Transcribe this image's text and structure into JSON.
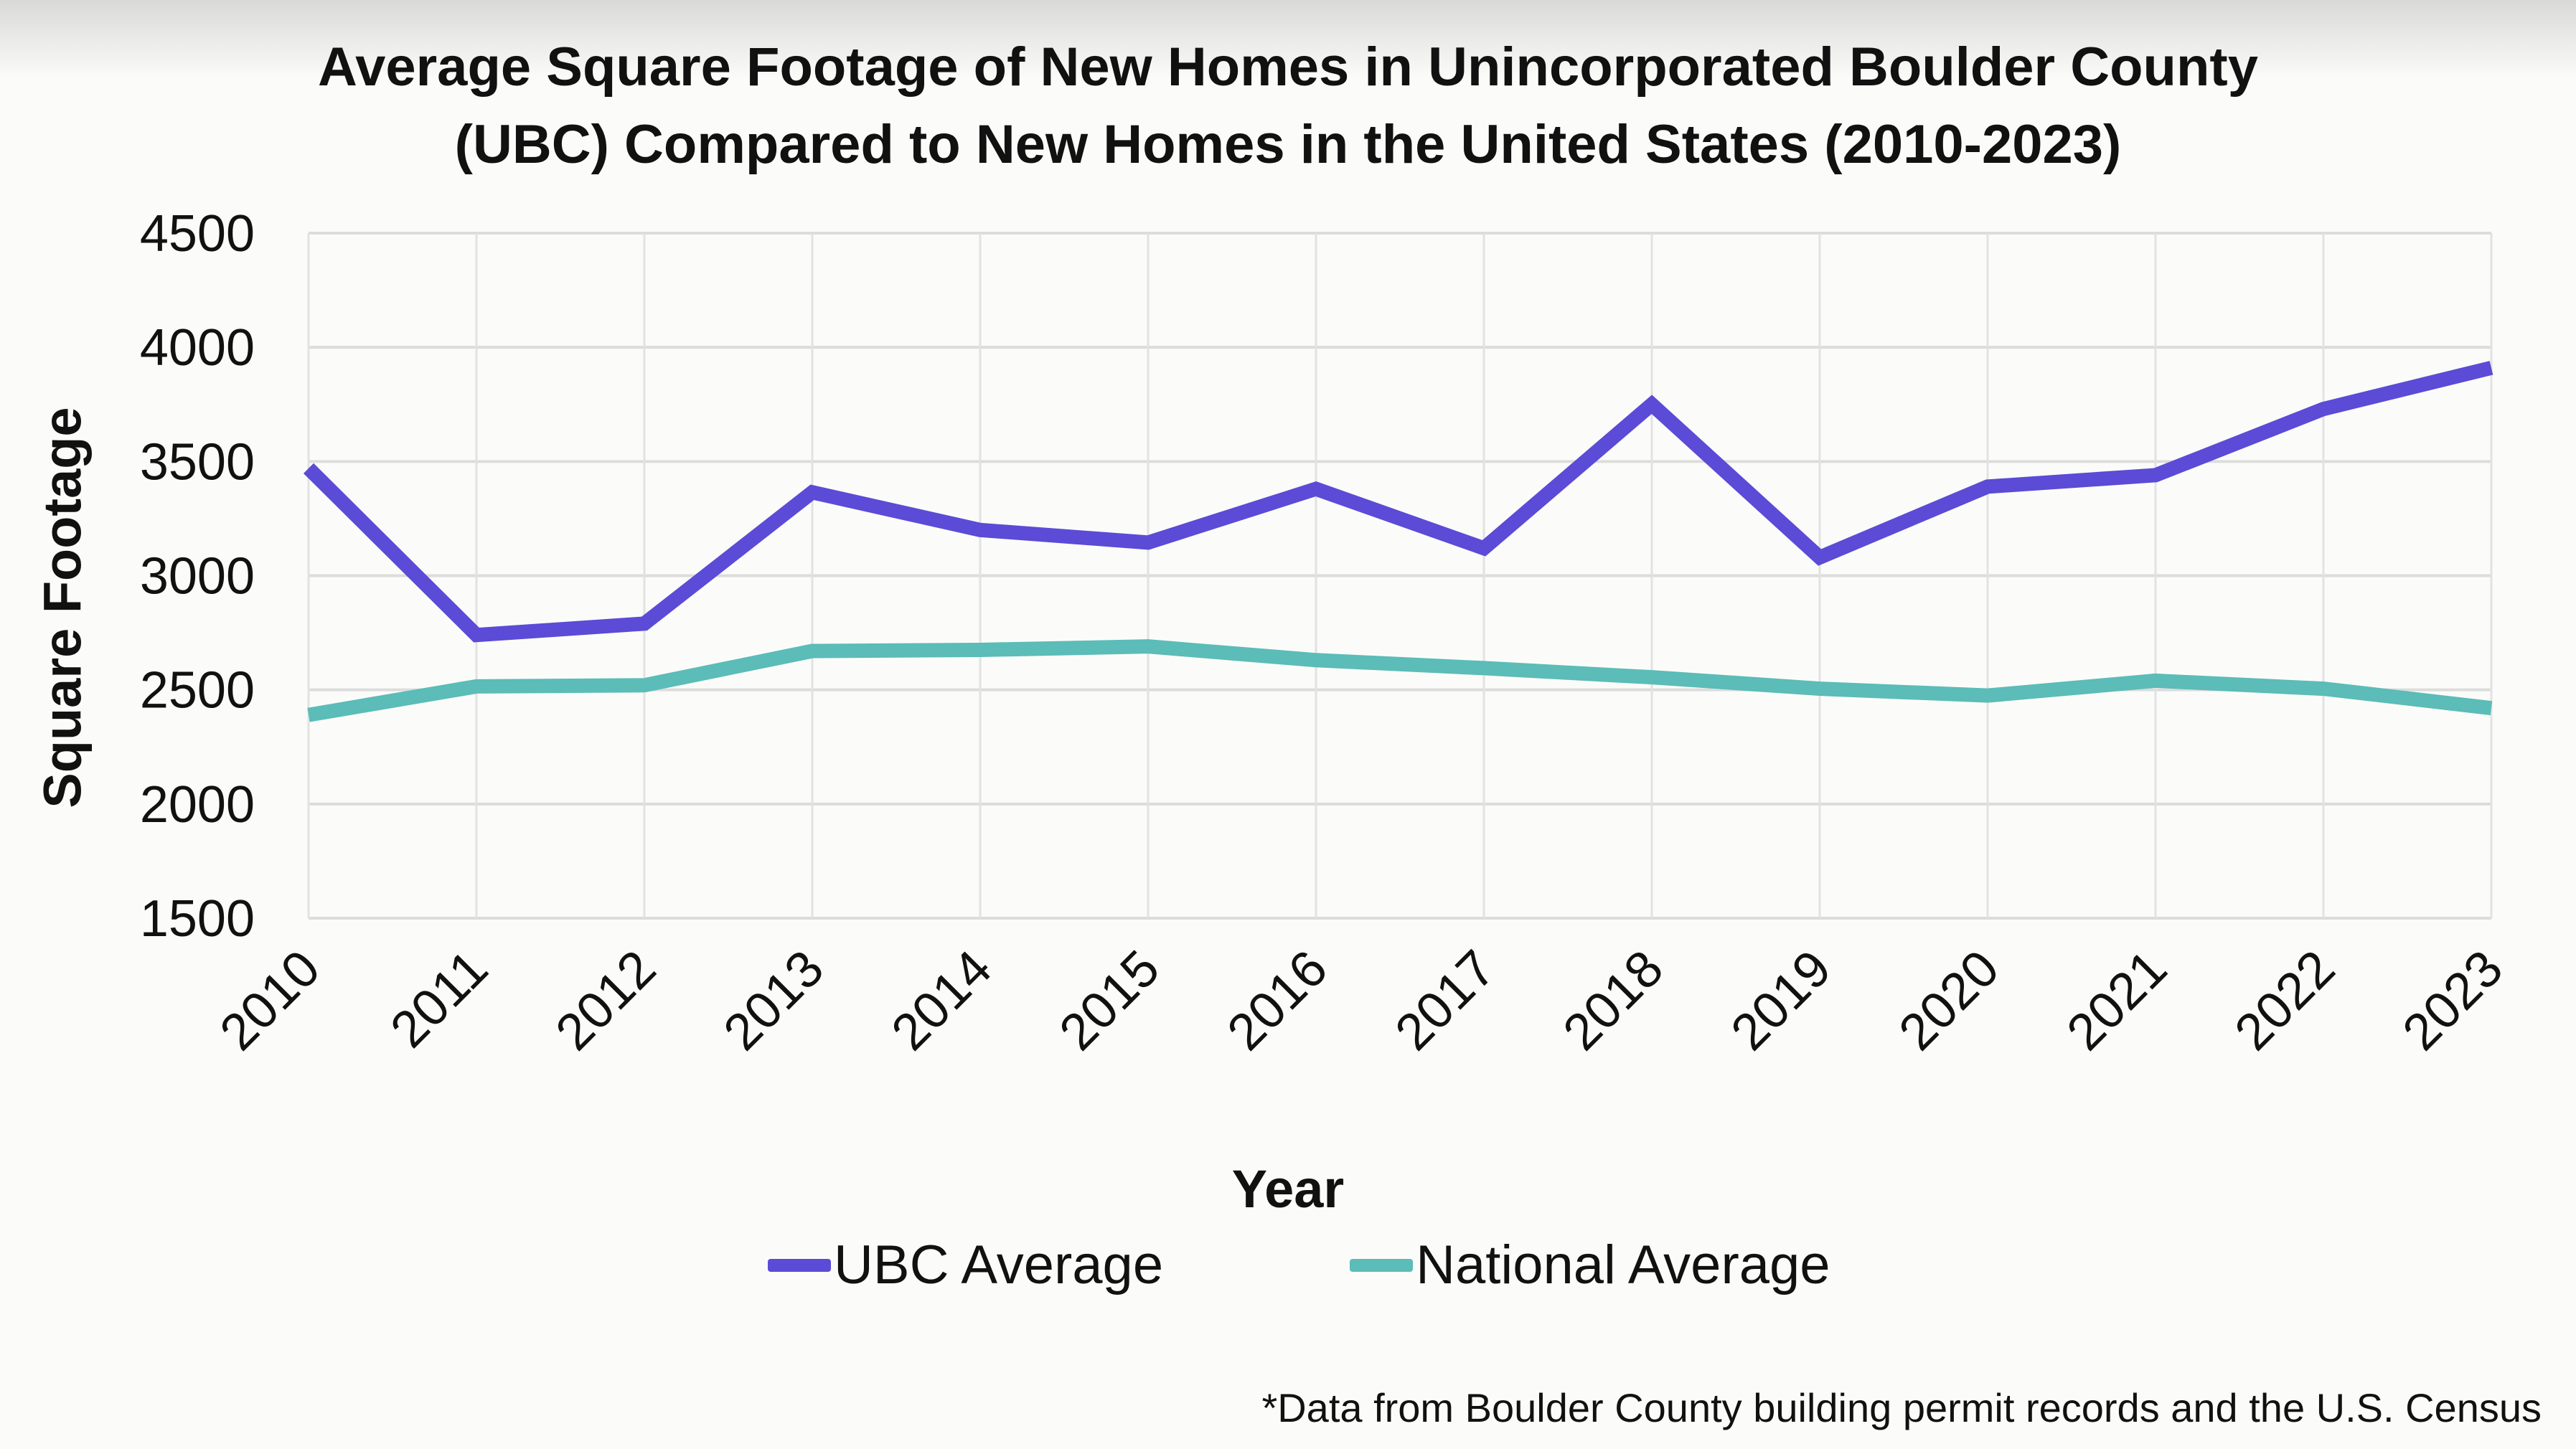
{
  "chart_data": {
    "type": "line",
    "title": "Average Square Footage of New Homes in Unincorporated Boulder County (UBC) Compared to New Homes in the United States (2010-2023)",
    "title_lines": [
      "Average Square Footage of New Homes in Unincorporated Boulder County",
      "(UBC) Compared to New Homes in the United States (2010-2023)"
    ],
    "xlabel": "Year",
    "ylabel": "Square Footage",
    "ylim": [
      1500,
      4500
    ],
    "yticks": [
      1500,
      2000,
      2500,
      3000,
      3500,
      4000,
      4500
    ],
    "x": [
      "2010",
      "2011",
      "2012",
      "2013",
      "2014",
      "2015",
      "2016",
      "2017",
      "2018",
      "2019",
      "2020",
      "2021",
      "2022",
      "2023"
    ],
    "series": [
      {
        "name": "UBC Average",
        "color": "#5b4bd6",
        "values": [
          3470,
          2740,
          2790,
          3365,
          3200,
          3145,
          3380,
          3120,
          3750,
          3080,
          3390,
          3440,
          3730,
          3910
        ]
      },
      {
        "name": "National Average",
        "color": "#5bbcb8",
        "values": [
          2390,
          2515,
          2520,
          2670,
          2675,
          2690,
          2630,
          2595,
          2555,
          2505,
          2475,
          2540,
          2505,
          2420
        ]
      }
    ],
    "grid": true,
    "legend": "bottom",
    "footnote": "*Data from Boulder County building permit records and the U.S. Census"
  }
}
